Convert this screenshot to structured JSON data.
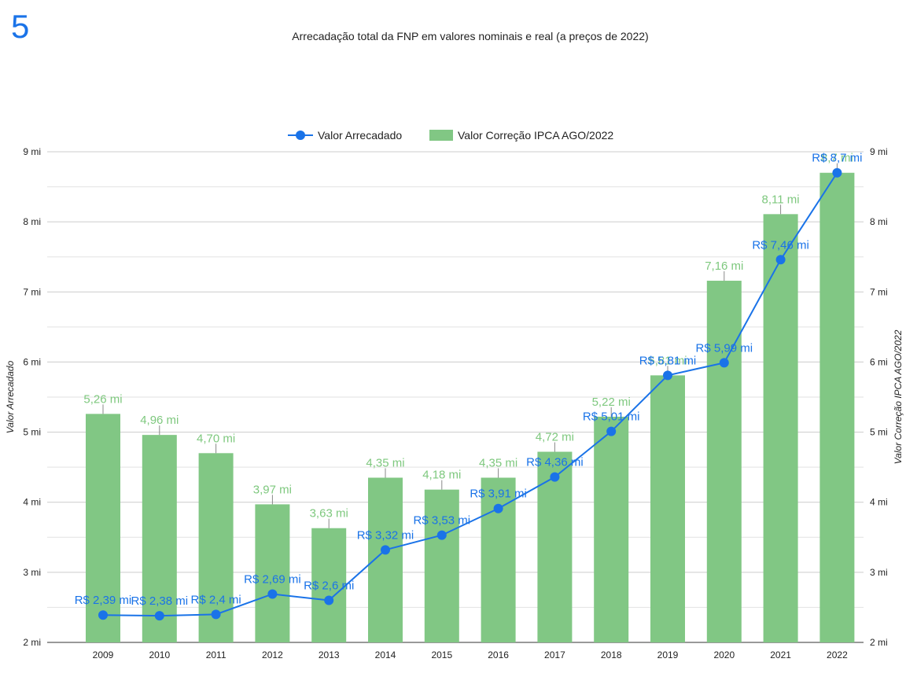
{
  "page_number": "5",
  "chart_data": {
    "type": "bar",
    "title": "Arrecadação total da FNP em valores nominais e real (a preços de 2022)",
    "categories": [
      "2009",
      "2010",
      "2011",
      "2012",
      "2013",
      "2014",
      "2015",
      "2016",
      "2017",
      "2018",
      "2019",
      "2020",
      "2021",
      "2022"
    ],
    "series": [
      {
        "name": "Valor Arrecadado",
        "type": "line",
        "color": "#1a73e8",
        "axis": "left",
        "values": [
          2.39,
          2.38,
          2.4,
          2.69,
          2.6,
          3.32,
          3.53,
          3.91,
          4.36,
          5.01,
          5.81,
          5.99,
          7.46,
          8.7
        ],
        "labels": [
          "R$ 2,39 mi",
          "R$ 2,38 mi",
          "R$ 2,4 mi",
          "R$ 2,69 mi",
          "R$ 2,6 mi",
          "R$ 3,32 mi",
          "R$ 3,53 mi",
          "R$ 3,91 mi",
          "R$ 4,36 mi",
          "R$ 5,01 mi",
          "R$ 5,81 mi",
          "R$ 5,99 mi",
          "R$ 7,46 mi",
          "R$ 8,7 mi"
        ]
      },
      {
        "name": "Valor Correção IPCA AGO/2022",
        "type": "bar",
        "color": "#81c784",
        "axis": "right",
        "values": [
          5.26,
          4.96,
          4.7,
          3.97,
          3.63,
          4.35,
          4.18,
          4.35,
          4.72,
          5.22,
          5.81,
          7.16,
          8.11,
          8.7
        ],
        "labels": [
          "5,26 mi",
          "4,96 mi",
          "4,70 mi",
          "3,97 mi",
          "3,63 mi",
          "4,35 mi",
          "4,18 mi",
          "4,35 mi",
          "4,72 mi",
          "5,22 mi",
          "5,81 mi",
          "7,16 mi",
          "8,11 mi",
          "8,7 mi"
        ]
      }
    ],
    "ylabel": "Valor Arrecadado",
    "y2label": "Valor Correção IPCA AGO/2022",
    "ylim": [
      2,
      9
    ],
    "yticks": [
      "2 mi",
      "3 mi",
      "4 mi",
      "5 mi",
      "6 mi",
      "7 mi",
      "8 mi",
      "9 mi"
    ],
    "grid": true,
    "legend": "top-center"
  }
}
